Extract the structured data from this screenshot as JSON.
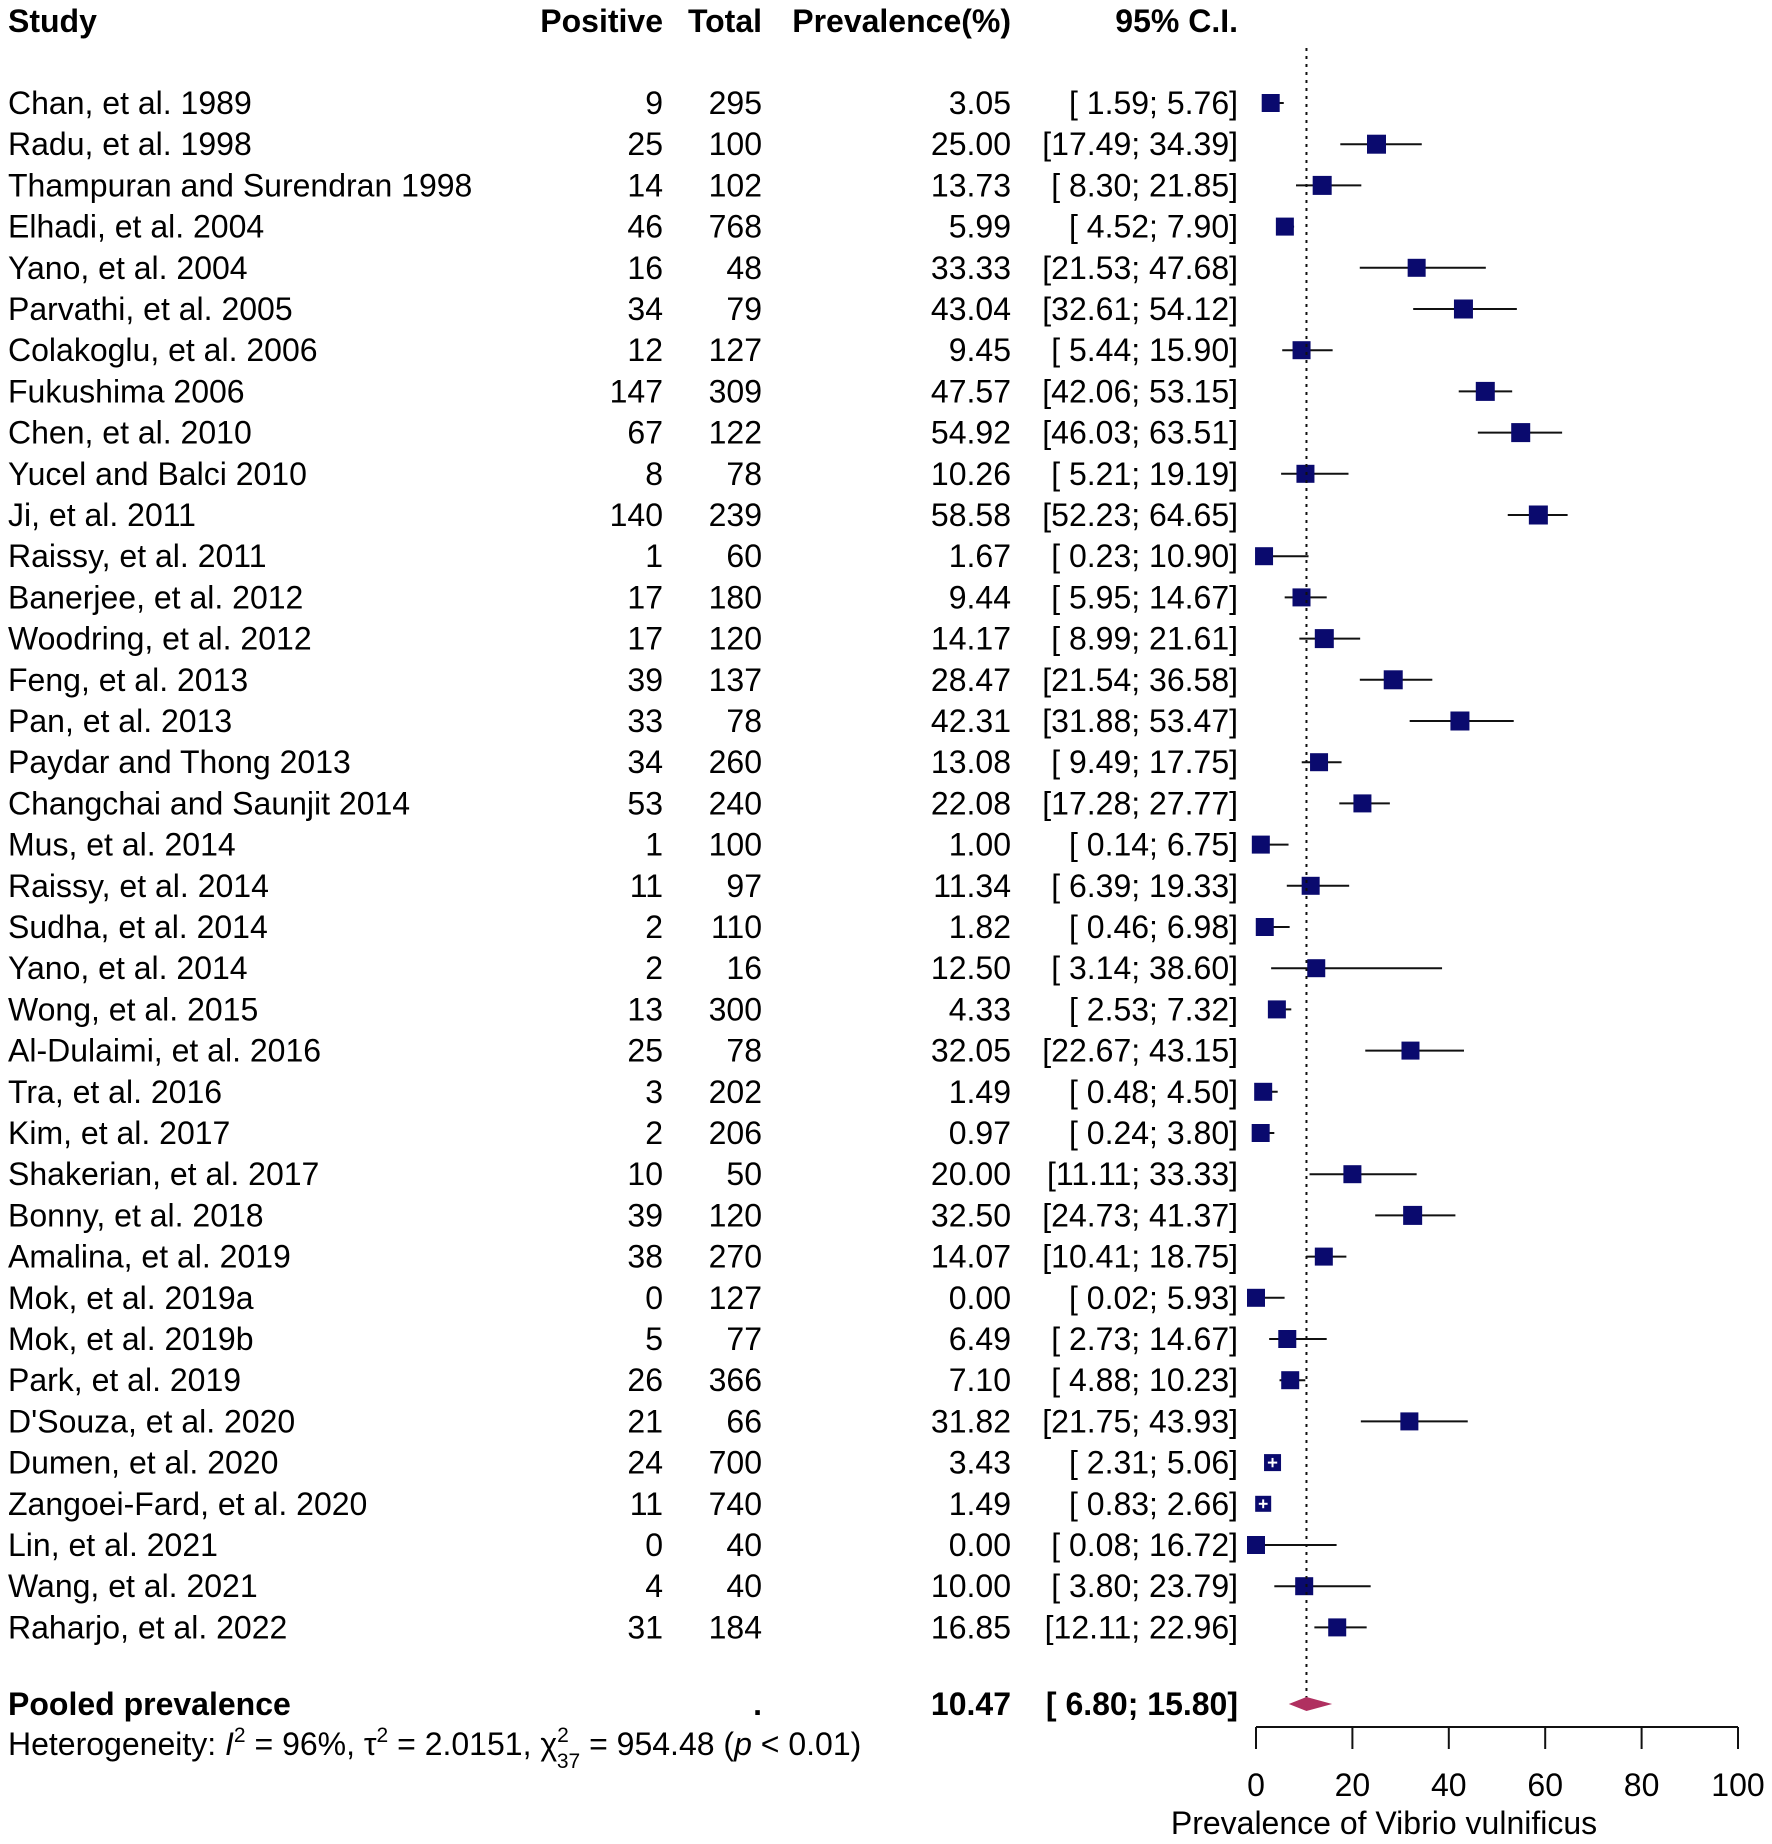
{
  "chart_data": {
    "type": "forest",
    "headers": {
      "study": "Study",
      "positive": "Positive",
      "total": "Total",
      "prevalence": "Prevalence(%)",
      "ci": "95% C.I."
    },
    "studies": [
      {
        "study": "Chan, et al. 1989",
        "positive": "9",
        "total": "295",
        "prevalence": 3.05,
        "prevalence_text": "3.05",
        "ci_low": 1.59,
        "ci_high": 5.76,
        "ci_text": "[ 1.59;  5.76]",
        "weight": 0.8
      },
      {
        "study": "Radu, et al. 1998",
        "positive": "25",
        "total": "100",
        "prevalence": 25.0,
        "prevalence_text": "25.00",
        "ci_low": 17.49,
        "ci_high": 34.39,
        "ci_text": "[17.49; 34.39]",
        "weight": 0.85
      },
      {
        "study": "Thampuran and Surendran 1998",
        "positive": "14",
        "total": "102",
        "prevalence": 13.73,
        "prevalence_text": "13.73",
        "ci_low": 8.3,
        "ci_high": 21.85,
        "ci_text": "[ 8.30; 21.85]",
        "weight": 0.85
      },
      {
        "study": "Elhadi, et al. 2004",
        "positive": "46",
        "total": "768",
        "prevalence": 5.99,
        "prevalence_text": "5.99",
        "ci_low": 4.52,
        "ci_high": 7.9,
        "ci_text": "[ 4.52;  7.90]",
        "weight": 0.8
      },
      {
        "study": "Yano, et al. 2004",
        "positive": "16",
        "total": "48",
        "prevalence": 33.33,
        "prevalence_text": "33.33",
        "ci_low": 21.53,
        "ci_high": 47.68,
        "ci_text": "[21.53; 47.68]",
        "weight": 0.8
      },
      {
        "study": "Parvathi, et al. 2005",
        "positive": "34",
        "total": "79",
        "prevalence": 43.04,
        "prevalence_text": "43.04",
        "ci_low": 32.61,
        "ci_high": 54.12,
        "ci_text": "[32.61; 54.12]",
        "weight": 0.85
      },
      {
        "study": "Colakoglu, et al. 2006",
        "positive": "12",
        "total": "127",
        "prevalence": 9.45,
        "prevalence_text": "9.45",
        "ci_low": 5.44,
        "ci_high": 15.9,
        "ci_text": "[ 5.44; 15.90]",
        "weight": 0.8
      },
      {
        "study": "Fukushima 2006",
        "positive": "147",
        "total": "309",
        "prevalence": 47.57,
        "prevalence_text": "47.57",
        "ci_low": 42.06,
        "ci_high": 53.15,
        "ci_text": "[42.06; 53.15]",
        "weight": 0.85
      },
      {
        "study": "Chen, et al. 2010",
        "positive": "67",
        "total": "122",
        "prevalence": 54.92,
        "prevalence_text": "54.92",
        "ci_low": 46.03,
        "ci_high": 63.51,
        "ci_text": "[46.03; 63.51]",
        "weight": 0.85
      },
      {
        "study": "Yucel and Balci 2010",
        "positive": "8",
        "total": "78",
        "prevalence": 10.26,
        "prevalence_text": "10.26",
        "ci_low": 5.21,
        "ci_high": 19.19,
        "ci_text": "[ 5.21; 19.19]",
        "weight": 0.8
      },
      {
        "study": "Ji, et al. 2011",
        "positive": "140",
        "total": "239",
        "prevalence": 58.58,
        "prevalence_text": "58.58",
        "ci_low": 52.23,
        "ci_high": 64.65,
        "ci_text": "[52.23; 64.65]",
        "weight": 0.85
      },
      {
        "study": "Raissy, et al. 2011",
        "positive": "1",
        "total": "60",
        "prevalence": 1.67,
        "prevalence_text": "1.67",
        "ci_low": 0.23,
        "ci_high": 10.9,
        "ci_text": "[ 0.23; 10.90]",
        "weight": 0.8
      },
      {
        "study": "Banerjee, et al. 2012",
        "positive": "17",
        "total": "180",
        "prevalence": 9.44,
        "prevalence_text": "9.44",
        "ci_low": 5.95,
        "ci_high": 14.67,
        "ci_text": "[ 5.95; 14.67]",
        "weight": 0.8
      },
      {
        "study": "Woodring, et al. 2012",
        "positive": "17",
        "total": "120",
        "prevalence": 14.17,
        "prevalence_text": "14.17",
        "ci_low": 8.99,
        "ci_high": 21.61,
        "ci_text": "[ 8.99; 21.61]",
        "weight": 0.85
      },
      {
        "study": "Feng, et al. 2013",
        "positive": "39",
        "total": "137",
        "prevalence": 28.47,
        "prevalence_text": "28.47",
        "ci_low": 21.54,
        "ci_high": 36.58,
        "ci_text": "[21.54; 36.58]",
        "weight": 0.85
      },
      {
        "study": "Pan, et al. 2013",
        "positive": "33",
        "total": "78",
        "prevalence": 42.31,
        "prevalence_text": "42.31",
        "ci_low": 31.88,
        "ci_high": 53.47,
        "ci_text": "[31.88; 53.47]",
        "weight": 0.85
      },
      {
        "study": "Paydar and Thong 2013",
        "positive": "34",
        "total": "260",
        "prevalence": 13.08,
        "prevalence_text": "13.08",
        "ci_low": 9.49,
        "ci_high": 17.75,
        "ci_text": "[ 9.49; 17.75]",
        "weight": 0.8
      },
      {
        "study": "Changchai and Saunjit 2014",
        "positive": "53",
        "total": "240",
        "prevalence": 22.08,
        "prevalence_text": "22.08",
        "ci_low": 17.28,
        "ci_high": 27.77,
        "ci_text": "[17.28; 27.77]",
        "weight": 0.8
      },
      {
        "study": "Mus, et al. 2014",
        "positive": "1",
        "total": "100",
        "prevalence": 1.0,
        "prevalence_text": "1.00",
        "ci_low": 0.14,
        "ci_high": 6.75,
        "ci_text": "[ 0.14;  6.75]",
        "weight": 0.8
      },
      {
        "study": "Raissy, et al. 2014",
        "positive": "11",
        "total": "97",
        "prevalence": 11.34,
        "prevalence_text": "11.34",
        "ci_low": 6.39,
        "ci_high": 19.33,
        "ci_text": "[ 6.39; 19.33]",
        "weight": 0.8
      },
      {
        "study": "Sudha, et al. 2014",
        "positive": "2",
        "total": "110",
        "prevalence": 1.82,
        "prevalence_text": "1.82",
        "ci_low": 0.46,
        "ci_high": 6.98,
        "ci_text": "[ 0.46;  6.98]",
        "weight": 0.8
      },
      {
        "study": "Yano, et al. 2014",
        "positive": "2",
        "total": "16",
        "prevalence": 12.5,
        "prevalence_text": "12.50",
        "ci_low": 3.14,
        "ci_high": 38.6,
        "ci_text": "[ 3.14; 38.60]",
        "weight": 0.8
      },
      {
        "study": "Wong, et al. 2015",
        "positive": "13",
        "total": "300",
        "prevalence": 4.33,
        "prevalence_text": "4.33",
        "ci_low": 2.53,
        "ci_high": 7.32,
        "ci_text": "[ 2.53;  7.32]",
        "weight": 0.8
      },
      {
        "study": "Al-Dulaimi, et al. 2016",
        "positive": "25",
        "total": "78",
        "prevalence": 32.05,
        "prevalence_text": "32.05",
        "ci_low": 22.67,
        "ci_high": 43.15,
        "ci_text": "[22.67; 43.15]",
        "weight": 0.8
      },
      {
        "study": "Tra, et al. 2016",
        "positive": "3",
        "total": "202",
        "prevalence": 1.49,
        "prevalence_text": "1.49",
        "ci_low": 0.48,
        "ci_high": 4.5,
        "ci_text": "[ 0.48;  4.50]",
        "weight": 0.8
      },
      {
        "study": "Kim, et al. 2017",
        "positive": "2",
        "total": "206",
        "prevalence": 0.97,
        "prevalence_text": "0.97",
        "ci_low": 0.24,
        "ci_high": 3.8,
        "ci_text": "[ 0.24;  3.80]",
        "weight": 0.8
      },
      {
        "study": "Shakerian, et al. 2017",
        "positive": "10",
        "total": "50",
        "prevalence": 20.0,
        "prevalence_text": "20.00",
        "ci_low": 11.11,
        "ci_high": 33.33,
        "ci_text": "[11.11; 33.33]",
        "weight": 0.8
      },
      {
        "study": "Bonny, et al. 2018",
        "positive": "39",
        "total": "120",
        "prevalence": 32.5,
        "prevalence_text": "32.50",
        "ci_low": 24.73,
        "ci_high": 41.37,
        "ci_text": "[24.73; 41.37]",
        "weight": 0.85
      },
      {
        "study": "Amalina, et al. 2019",
        "positive": "38",
        "total": "270",
        "prevalence": 14.07,
        "prevalence_text": "14.07",
        "ci_low": 10.41,
        "ci_high": 18.75,
        "ci_text": "[10.41; 18.75]",
        "weight": 0.8
      },
      {
        "study": "Mok, et al. 2019a",
        "positive": "0",
        "total": "127",
        "prevalence": 0.0,
        "prevalence_text": "0.00",
        "ci_low": 0.02,
        "ci_high": 5.93,
        "ci_text": "[ 0.02;  5.93]",
        "weight": 0.8
      },
      {
        "study": "Mok, et al. 2019b",
        "positive": "5",
        "total": "77",
        "prevalence": 6.49,
        "prevalence_text": "6.49",
        "ci_low": 2.73,
        "ci_high": 14.67,
        "ci_text": "[ 2.73; 14.67]",
        "weight": 0.8
      },
      {
        "study": "Park, et al. 2019",
        "positive": "26",
        "total": "366",
        "prevalence": 7.1,
        "prevalence_text": "7.10",
        "ci_low": 4.88,
        "ci_high": 10.23,
        "ci_text": "[ 4.88; 10.23]",
        "weight": 0.8
      },
      {
        "study": "D'Souza, et al. 2020",
        "positive": "21",
        "total": "66",
        "prevalence": 31.82,
        "prevalence_text": "31.82",
        "ci_low": 21.75,
        "ci_high": 43.93,
        "ci_text": "[21.75; 43.93]",
        "weight": 0.8
      },
      {
        "study": "Dumen, et al. 2020",
        "positive": "24",
        "total": "700",
        "prevalence": 3.43,
        "prevalence_text": "3.43",
        "ci_low": 2.31,
        "ci_high": 5.06,
        "ci_text": "[ 2.31;  5.06]",
        "weight": 0.75
      },
      {
        "study": "Zangoei-Fard, et al. 2020",
        "positive": "11",
        "total": "740",
        "prevalence": 1.49,
        "prevalence_text": "1.49",
        "ci_low": 0.83,
        "ci_high": 2.66,
        "ci_text": "[ 0.83;  2.66]",
        "weight": 0.7
      },
      {
        "study": "Lin, et al. 2021",
        "positive": "0",
        "total": "40",
        "prevalence": 0.0,
        "prevalence_text": "0.00",
        "ci_low": 0.08,
        "ci_high": 16.72,
        "ci_text": "[ 0.08; 16.72]",
        "weight": 0.8
      },
      {
        "study": "Wang, et al. 2021",
        "positive": "4",
        "total": "40",
        "prevalence": 10.0,
        "prevalence_text": "10.00",
        "ci_low": 3.8,
        "ci_high": 23.79,
        "ci_text": "[ 3.80; 23.79]",
        "weight": 0.8
      },
      {
        "study": "Raharjo, et al. 2022",
        "positive": "31",
        "total": "184",
        "prevalence": 16.85,
        "prevalence_text": "16.85",
        "ci_low": 12.11,
        "ci_high": 22.96,
        "ci_text": "[12.11; 22.96]",
        "weight": 0.8
      }
    ],
    "pooled": {
      "label": "Pooled prevalence",
      "positive": ".",
      "estimate": 10.47,
      "estimate_text": "10.47",
      "ci_low": 6.8,
      "ci_high": 15.8,
      "ci_text": "[ 6.80; 15.80]"
    },
    "heterogeneity": {
      "prefix": "Heterogeneity: ",
      "i2_symbol": "I",
      "i2_sup": "2",
      "i2_value": " = 96%, ",
      "tau2_symbol": "τ",
      "tau2_sup": "2",
      "tau2_value": " = 2.0151, ",
      "chi2_symbol": "χ",
      "chi2_sup": "2",
      "chi2_sub": "37",
      "chi2_value": " = 954.48 (",
      "p_symbol": "p",
      "p_value": " < 0.01)"
    },
    "axis": {
      "xlabel": "Prevalence of Vibrio vulnificus",
      "xlim": [
        0,
        100
      ],
      "ticks": [
        0,
        20,
        40,
        60,
        80,
        100
      ],
      "tick_labels": [
        "0",
        "20",
        "40",
        "60",
        "80",
        "100"
      ],
      "reference_line": 10.47
    },
    "colors": {
      "square": "#0a0a6e",
      "diamond": "#b03060",
      "line": "#111111"
    }
  }
}
